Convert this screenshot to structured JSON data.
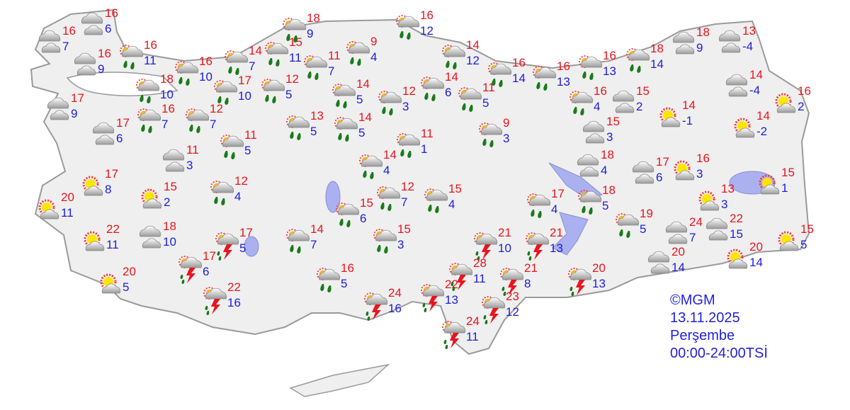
{
  "legend": {
    "copyright": "©MGM",
    "date": "13.11.2025",
    "day": "Perşembe",
    "period": "00:00-24:00TSİ"
  },
  "colors": {
    "max_temp": "#e8141e",
    "min_temp": "#1c1ce0",
    "land": "#efefef",
    "border": "#9a9a9a",
    "water": "#aab0f0"
  },
  "icon_types": {
    "c": "cloudy-icon",
    "pc": "sun-behind-cloud-icon",
    "r": "rain-with-sun-icon",
    "t": "thunderstorm-icon"
  },
  "stations": [
    {
      "icon": "c",
      "max": "16",
      "min": "6"
    },
    {
      "icon": "c",
      "max": "16",
      "min": "7"
    },
    {
      "icon": "c",
      "max": "16",
      "min": "9"
    },
    {
      "icon": "r",
      "max": "16",
      "min": "11"
    },
    {
      "icon": "r",
      "max": "16",
      "min": "10"
    },
    {
      "icon": "r",
      "max": "14",
      "min": "7"
    },
    {
      "icon": "r",
      "max": "15",
      "min": "11"
    },
    {
      "icon": "r",
      "max": "18",
      "min": "9"
    },
    {
      "icon": "r",
      "max": "11",
      "min": "7"
    },
    {
      "icon": "r",
      "max": "9",
      "min": "4"
    },
    {
      "icon": "r",
      "max": "16",
      "min": "12"
    },
    {
      "icon": "r",
      "max": "14",
      "min": "12"
    },
    {
      "icon": "r",
      "max": "16",
      "min": "14"
    },
    {
      "icon": "r",
      "max": "16",
      "min": "13"
    },
    {
      "icon": "r",
      "max": "16",
      "min": "13"
    },
    {
      "icon": "r",
      "max": "18",
      "min": "14"
    },
    {
      "icon": "c",
      "max": "18",
      "min": "9"
    },
    {
      "icon": "c",
      "max": "13",
      "min": "-4"
    },
    {
      "icon": "c",
      "max": "14",
      "min": "-4"
    },
    {
      "icon": "pc",
      "max": "16",
      "min": "2"
    },
    {
      "icon": "pc",
      "max": "14",
      "min": "-2"
    },
    {
      "icon": "pc",
      "max": "14",
      "min": "-1"
    },
    {
      "icon": "c",
      "max": "15",
      "min": "2"
    },
    {
      "icon": "r",
      "max": "16",
      "min": "4"
    },
    {
      "icon": "c",
      "max": "15",
      "min": "3"
    },
    {
      "icon": "r",
      "max": "18",
      "min": "10"
    },
    {
      "icon": "r",
      "max": "17",
      "min": "10"
    },
    {
      "icon": "r",
      "max": "12",
      "min": "5"
    },
    {
      "icon": "r",
      "max": "14",
      "min": "5"
    },
    {
      "icon": "r",
      "max": "12",
      "min": "3"
    },
    {
      "icon": "r",
      "max": "14",
      "min": "6"
    },
    {
      "icon": "r",
      "max": "11",
      "min": "5"
    },
    {
      "icon": "c",
      "max": "17",
      "min": "9"
    },
    {
      "icon": "c",
      "max": "17",
      "min": "6"
    },
    {
      "icon": "r",
      "max": "16",
      "min": "7"
    },
    {
      "icon": "r",
      "max": "12",
      "min": "7"
    },
    {
      "icon": "r",
      "max": "11",
      "min": "5"
    },
    {
      "icon": "r",
      "max": "13",
      "min": "5"
    },
    {
      "icon": "r",
      "max": "14",
      "min": "5"
    },
    {
      "icon": "r",
      "max": "11",
      "min": "1"
    },
    {
      "icon": "r",
      "max": "9",
      "min": "3"
    },
    {
      "icon": "c",
      "max": "11",
      "min": "3"
    },
    {
      "icon": "r",
      "max": "14",
      "min": "4"
    },
    {
      "icon": "pc",
      "max": "17",
      "min": "8"
    },
    {
      "icon": "pc",
      "max": "15",
      "min": "2"
    },
    {
      "icon": "r",
      "max": "12",
      "min": "4"
    },
    {
      "icon": "r",
      "max": "12",
      "min": "7"
    },
    {
      "icon": "r",
      "max": "15",
      "min": "4"
    },
    {
      "icon": "r",
      "max": "15",
      "min": "6"
    },
    {
      "icon": "pc",
      "max": "20",
      "min": "11"
    },
    {
      "icon": "pc",
      "max": "22",
      "min": "11"
    },
    {
      "icon": "c",
      "max": "18",
      "min": "10"
    },
    {
      "icon": "t",
      "max": "17",
      "min": "5"
    },
    {
      "icon": "r",
      "max": "14",
      "min": "7"
    },
    {
      "icon": "r",
      "max": "15",
      "min": "3"
    },
    {
      "icon": "t",
      "max": "17",
      "min": "6"
    },
    {
      "icon": "pc",
      "max": "20",
      "min": "5"
    },
    {
      "icon": "t",
      "max": "22",
      "min": "16"
    },
    {
      "icon": "r",
      "max": "16",
      "min": "5"
    },
    {
      "icon": "t",
      "max": "24",
      "min": "16"
    },
    {
      "icon": "t",
      "max": "22",
      "min": "13"
    },
    {
      "icon": "t",
      "max": "21",
      "min": "10"
    },
    {
      "icon": "t",
      "max": "21",
      "min": "13"
    },
    {
      "icon": "t",
      "max": "28",
      "min": "11"
    },
    {
      "icon": "t",
      "max": "21",
      "min": "8"
    },
    {
      "icon": "t",
      "max": "20",
      "min": "13"
    },
    {
      "icon": "t",
      "max": "23",
      "min": "12"
    },
    {
      "icon": "t",
      "max": "24",
      "min": "11"
    },
    {
      "icon": "r",
      "max": "17",
      "min": "4"
    },
    {
      "icon": "r",
      "max": "18",
      "min": "5"
    },
    {
      "icon": "r",
      "max": "19",
      "min": "5"
    },
    {
      "icon": "c",
      "max": "18",
      "min": "4"
    },
    {
      "icon": "c",
      "max": "17",
      "min": "6"
    },
    {
      "icon": "pc",
      "max": "16",
      "min": "3"
    },
    {
      "icon": "pc",
      "max": "13",
      "min": "3"
    },
    {
      "icon": "pc",
      "max": "15",
      "min": "1"
    },
    {
      "icon": "c",
      "max": "24",
      "min": "7"
    },
    {
      "icon": "c",
      "max": "22",
      "min": "15"
    },
    {
      "icon": "pc",
      "max": "15",
      "min": "5"
    },
    {
      "icon": "c",
      "max": "20",
      "min": "14"
    },
    {
      "icon": "pc",
      "max": "20",
      "min": "14"
    }
  ]
}
